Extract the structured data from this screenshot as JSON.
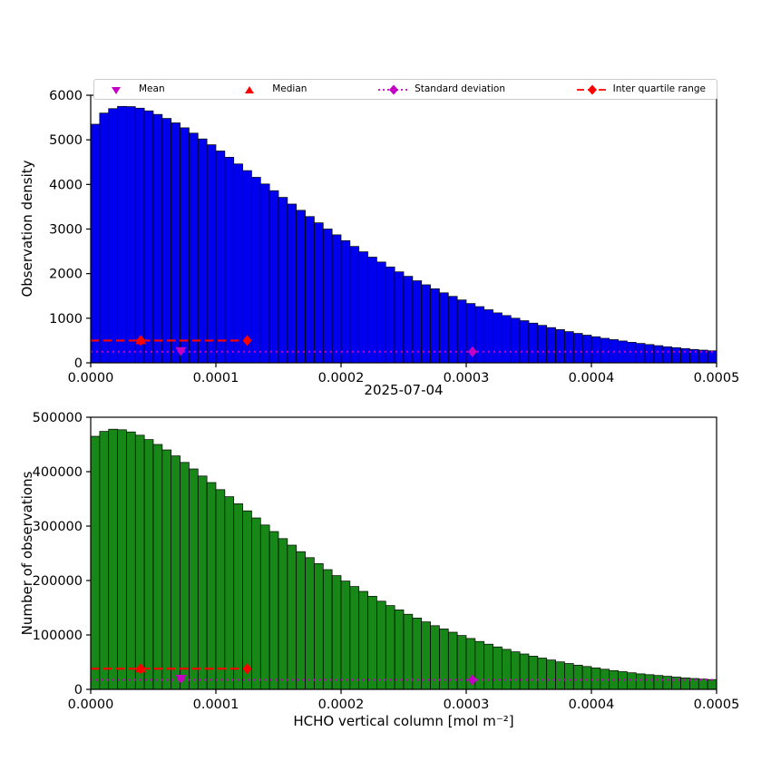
{
  "figure": {
    "title": "2025-07-04",
    "xlabel": "HCHO vertical column [mol m⁻²]",
    "background": "#ffffff"
  },
  "legend": {
    "items": [
      {
        "label": "Mean",
        "marker": "triangle-down",
        "color": "#c400c4"
      },
      {
        "label": "Median",
        "marker": "triangle-up",
        "color": "#ff0000"
      },
      {
        "label": "Standard deviation",
        "marker": "diamond-dotted",
        "color": "#c400c4"
      },
      {
        "label": "Inter quartile range",
        "marker": "diamond-dashed",
        "color": "#ff0000"
      }
    ]
  },
  "chart_data": [
    {
      "type": "bar",
      "name": "observation-density-histogram",
      "ylabel": "Observation density",
      "bar_color": "#0000ee",
      "edge_color": "#000000",
      "xlim": [
        0,
        0.0005
      ],
      "ylim": [
        0,
        6000
      ],
      "xticks": [
        0,
        0.0001,
        0.0002,
        0.0003,
        0.0004,
        0.0005
      ],
      "xtick_labels": [
        "0.0000",
        "0.0001",
        "0.0002",
        "0.0003",
        "0.0004",
        "0.0005"
      ],
      "yticks": [
        0,
        1000,
        2000,
        3000,
        4000,
        5000,
        6000
      ],
      "ytick_labels": [
        "0",
        "1000",
        "2000",
        "3000",
        "4000",
        "5000",
        "6000"
      ],
      "bin_start": 0,
      "bin_width": 7.142857e-06,
      "values": [
        5350,
        5600,
        5700,
        5750,
        5745,
        5710,
        5650,
        5570,
        5480,
        5380,
        5270,
        5150,
        5020,
        4890,
        4750,
        4610,
        4460,
        4310,
        4160,
        4010,
        3860,
        3710,
        3560,
        3420,
        3280,
        3140,
        3000,
        2870,
        2740,
        2610,
        2490,
        2370,
        2260,
        2150,
        2040,
        1940,
        1840,
        1750,
        1660,
        1570,
        1490,
        1410,
        1330,
        1260,
        1190,
        1120,
        1060,
        1000,
        945,
        890,
        840,
        790,
        745,
        700,
        660,
        620,
        585,
        550,
        520,
        490,
        460,
        435,
        410,
        385,
        360,
        340,
        320,
        300,
        285,
        270
      ],
      "markers": {
        "mean": {
          "x": 7.2e-05,
          "y": 270
        },
        "median": {
          "x": 4e-05,
          "y": 500
        },
        "std": {
          "x": 0.000305,
          "y": 250,
          "line_from": 0,
          "line_to": 0.0005
        },
        "iqr": {
          "x1": 4e-05,
          "x2": 0.000125,
          "y": 500,
          "line_from": 0,
          "line_to": 0.000125
        }
      }
    },
    {
      "type": "bar",
      "name": "number-of-observations-histogram",
      "ylabel": "Number of observations",
      "bar_color": "#178717",
      "edge_color": "#000000",
      "xlim": [
        0,
        0.0005
      ],
      "ylim": [
        0,
        500000
      ],
      "xticks": [
        0,
        0.0001,
        0.0002,
        0.0003,
        0.0004,
        0.0005
      ],
      "xtick_labels": [
        "0.0000",
        "0.0001",
        "0.0002",
        "0.0003",
        "0.0004",
        "0.0005"
      ],
      "yticks": [
        0,
        100000,
        200000,
        300000,
        400000,
        500000
      ],
      "ytick_labels": [
        "0",
        "100000",
        "200000",
        "300000",
        "400000",
        "500000"
      ],
      "bin_start": 0,
      "bin_width": 7.142857e-06,
      "values": [
        465000,
        474000,
        478000,
        477000,
        473000,
        467000,
        459000,
        450000,
        440000,
        429000,
        417000,
        405000,
        392000,
        380000,
        367000,
        354000,
        341000,
        328000,
        315000,
        302000,
        290000,
        277000,
        265000,
        253000,
        242000,
        231000,
        220000,
        209000,
        199000,
        189000,
        180000,
        171000,
        162000,
        154000,
        146000,
        138000,
        131000,
        124000,
        117000,
        111000,
        105000,
        99000,
        93500,
        88000,
        83000,
        78000,
        73500,
        69000,
        65000,
        61000,
        57500,
        54000,
        50500,
        47500,
        44500,
        42000,
        39500,
        37000,
        34500,
        32500,
        30500,
        28500,
        27000,
        25500,
        24000,
        22500,
        21000,
        20000,
        19000,
        18000
      ],
      "markers": {
        "mean": {
          "x": 7.2e-05,
          "y": 20000
        },
        "median": {
          "x": 4e-05,
          "y": 38000
        },
        "std": {
          "x": 0.000305,
          "y": 17500,
          "line_from": 0,
          "line_to": 0.0005
        },
        "iqr": {
          "x1": 4e-05,
          "x2": 0.000125,
          "y": 38000,
          "line_from": 0,
          "line_to": 0.000125
        }
      }
    }
  ]
}
